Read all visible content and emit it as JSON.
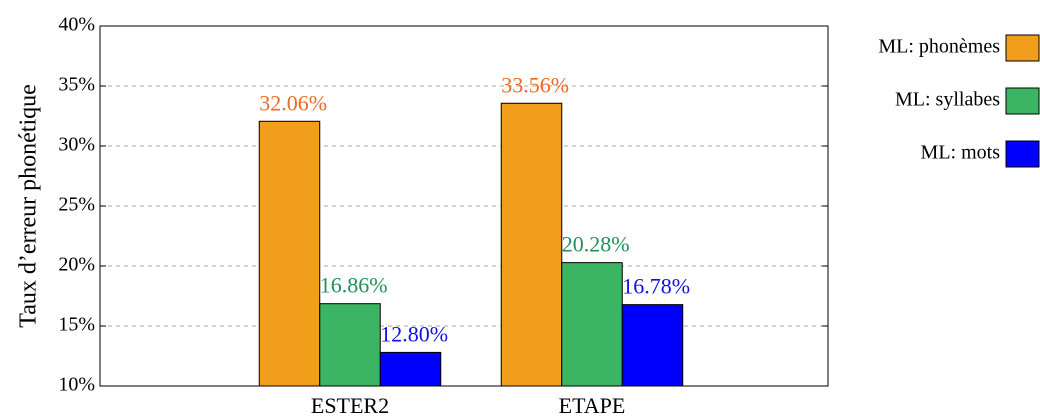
{
  "chart_data": {
    "type": "bar",
    "y_label": "Taux d’erreur phonétique",
    "categories": [
      "ESTER2",
      "ETAPE"
    ],
    "series": [
      {
        "name": "ML: phonèmes",
        "color": "#f09e1b",
        "label_color": "#ee6a22",
        "values": [
          32.06,
          33.56
        ],
        "value_labels": [
          "32.06%",
          "33.56%"
        ]
      },
      {
        "name": "ML: syllabes",
        "color": "#3bb563",
        "label_color": "#23905a",
        "values": [
          16.86,
          20.28
        ],
        "value_labels": [
          "16.86%",
          "20.28%"
        ]
      },
      {
        "name": "ML: mots",
        "color": "#0000ff",
        "label_color": "#1010e0",
        "values": [
          12.8,
          16.78
        ],
        "value_labels": [
          "12.80%",
          "16.78%"
        ]
      }
    ],
    "ylim": [
      10,
      40
    ],
    "yticks": [
      {
        "value": 10,
        "label": "10%"
      },
      {
        "value": 15,
        "label": "15%"
      },
      {
        "value": 20,
        "label": "20%"
      },
      {
        "value": 25,
        "label": "25%"
      },
      {
        "value": 30,
        "label": "30%"
      },
      {
        "value": 35,
        "label": "35%"
      },
      {
        "value": 40,
        "label": "40%"
      }
    ],
    "grid": true,
    "legend": "right"
  }
}
